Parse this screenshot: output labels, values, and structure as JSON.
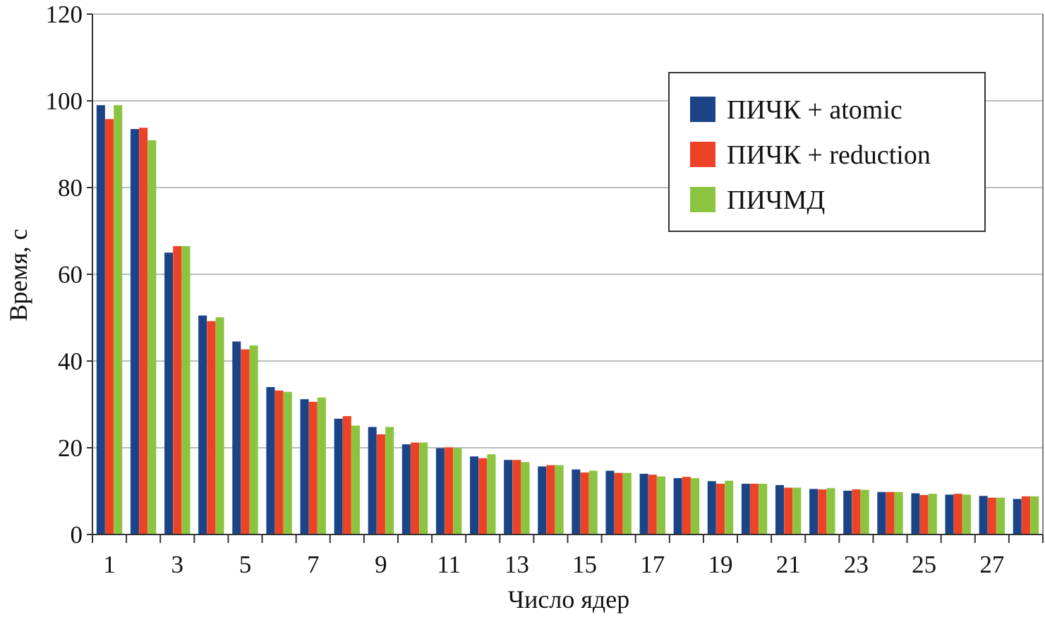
{
  "chart_data": {
    "type": "bar",
    "title": "",
    "xlabel": "Число ядер",
    "ylabel": "Время, с",
    "ylim": [
      0,
      120
    ],
    "yticks": [
      0,
      20,
      40,
      60,
      80,
      100,
      120
    ],
    "categories": [
      1,
      2,
      3,
      4,
      5,
      6,
      7,
      8,
      9,
      10,
      11,
      12,
      13,
      14,
      15,
      16,
      17,
      18,
      19,
      20,
      21,
      22,
      23,
      24,
      25,
      26,
      27,
      28
    ],
    "xtick_labels": [
      "1",
      "",
      "3",
      "",
      "5",
      "",
      "7",
      "",
      "9",
      "",
      "11",
      "",
      "13",
      "",
      "15",
      "",
      "17",
      "",
      "19",
      "",
      "21",
      "",
      "23",
      "",
      "25",
      "",
      "27",
      ""
    ],
    "grid": "horizontal",
    "legend_position": "top-right",
    "series": [
      {
        "name": "ПИЧК + atomic",
        "color": "#1b4486",
        "values": [
          99.0,
          93.5,
          65.0,
          50.5,
          44.5,
          34.0,
          31.2,
          26.7,
          24.8,
          20.8,
          19.9,
          18.0,
          17.2,
          15.7,
          15.0,
          14.7,
          14.0,
          13.0,
          12.3,
          11.7,
          11.4,
          10.5,
          10.1,
          9.8,
          9.5,
          9.2,
          8.9,
          8.2
        ]
      },
      {
        "name": "ПИЧК + reduction",
        "color": "#ec4326",
        "values": [
          95.8,
          93.8,
          66.5,
          49.2,
          42.7,
          33.2,
          30.6,
          27.3,
          23.1,
          21.2,
          20.1,
          17.6,
          17.2,
          16.0,
          14.3,
          14.2,
          13.8,
          13.3,
          11.7,
          11.7,
          10.8,
          10.4,
          10.4,
          9.8,
          9.1,
          9.4,
          8.5,
          8.8
        ]
      },
      {
        "name": "ПИЧМД",
        "color": "#8bc53f",
        "values": [
          99.0,
          90.9,
          66.5,
          50.1,
          43.6,
          32.9,
          31.6,
          25.1,
          24.8,
          21.2,
          19.9,
          18.5,
          16.7,
          16.0,
          14.7,
          14.2,
          13.4,
          13.0,
          12.4,
          11.7,
          10.8,
          10.7,
          10.3,
          9.8,
          9.4,
          9.2,
          8.5,
          8.8
        ]
      }
    ]
  }
}
